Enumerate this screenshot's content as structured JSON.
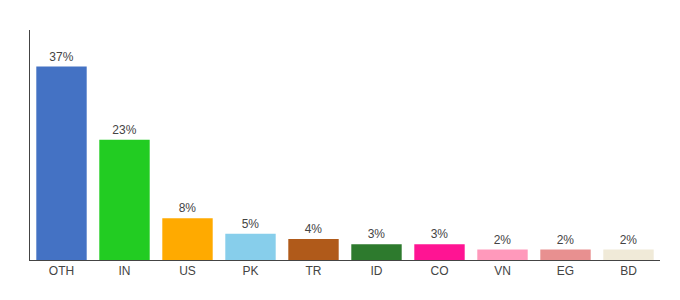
{
  "chart_data": {
    "type": "bar",
    "categories": [
      "OTH",
      "IN",
      "US",
      "PK",
      "TR",
      "ID",
      "CO",
      "VN",
      "EG",
      "BD"
    ],
    "values": [
      37,
      23,
      8,
      5,
      4,
      3,
      3,
      2,
      2,
      2
    ],
    "value_labels": [
      "37%",
      "23%",
      "8%",
      "5%",
      "4%",
      "3%",
      "3%",
      "2%",
      "2%",
      "2%"
    ],
    "colors": [
      "#4472c4",
      "#22cc22",
      "#ffaa00",
      "#87ceeb",
      "#b05a1a",
      "#2d7a2d",
      "#ff1493",
      "#ff99bb",
      "#e89090",
      "#f0ead8"
    ],
    "ylim": [
      0,
      44
    ],
    "tick_labels": "x",
    "grid": false,
    "data_labels": true
  }
}
